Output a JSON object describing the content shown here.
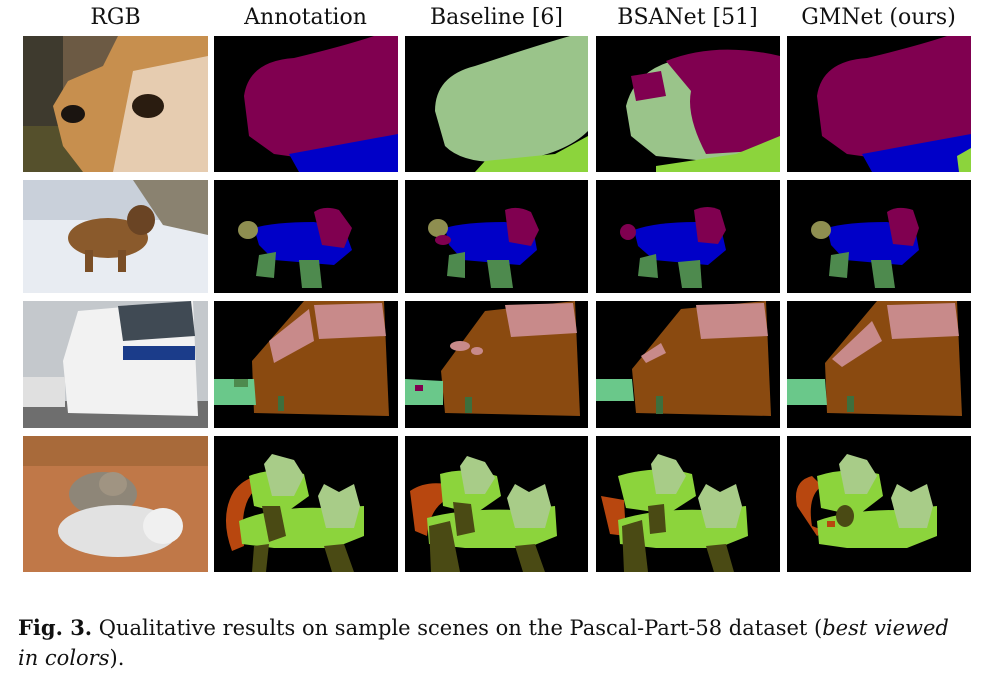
{
  "figure": {
    "columns": [
      "RGB",
      "Annotation",
      "Baseline [6]",
      "BSANet [51]",
      "GMNet (ours)"
    ],
    "caption": {
      "label": "Fig. 3.",
      "text_before_italic": " Qualitative results on sample scenes on the Pascal-Part-58 dataset (",
      "italic": "best viewed in colors",
      "text_after_italic": ")."
    },
    "part_colors": {
      "head": "#800050",
      "torso": "#0000c8",
      "leg": "#4e8a4e",
      "ear": "#8e8e50",
      "body_light_green": "#9ac48a",
      "neck_lime": "#8cd43c",
      "vehicle_body": "#8a4a10",
      "window": "#c88a8a",
      "car_teal": "#6ac88a",
      "cat_body": "#8cd43c",
      "cat_head": "#a8cc88",
      "cat_tail": "#b8470f",
      "cat_leg": "#4a4a14"
    }
  }
}
